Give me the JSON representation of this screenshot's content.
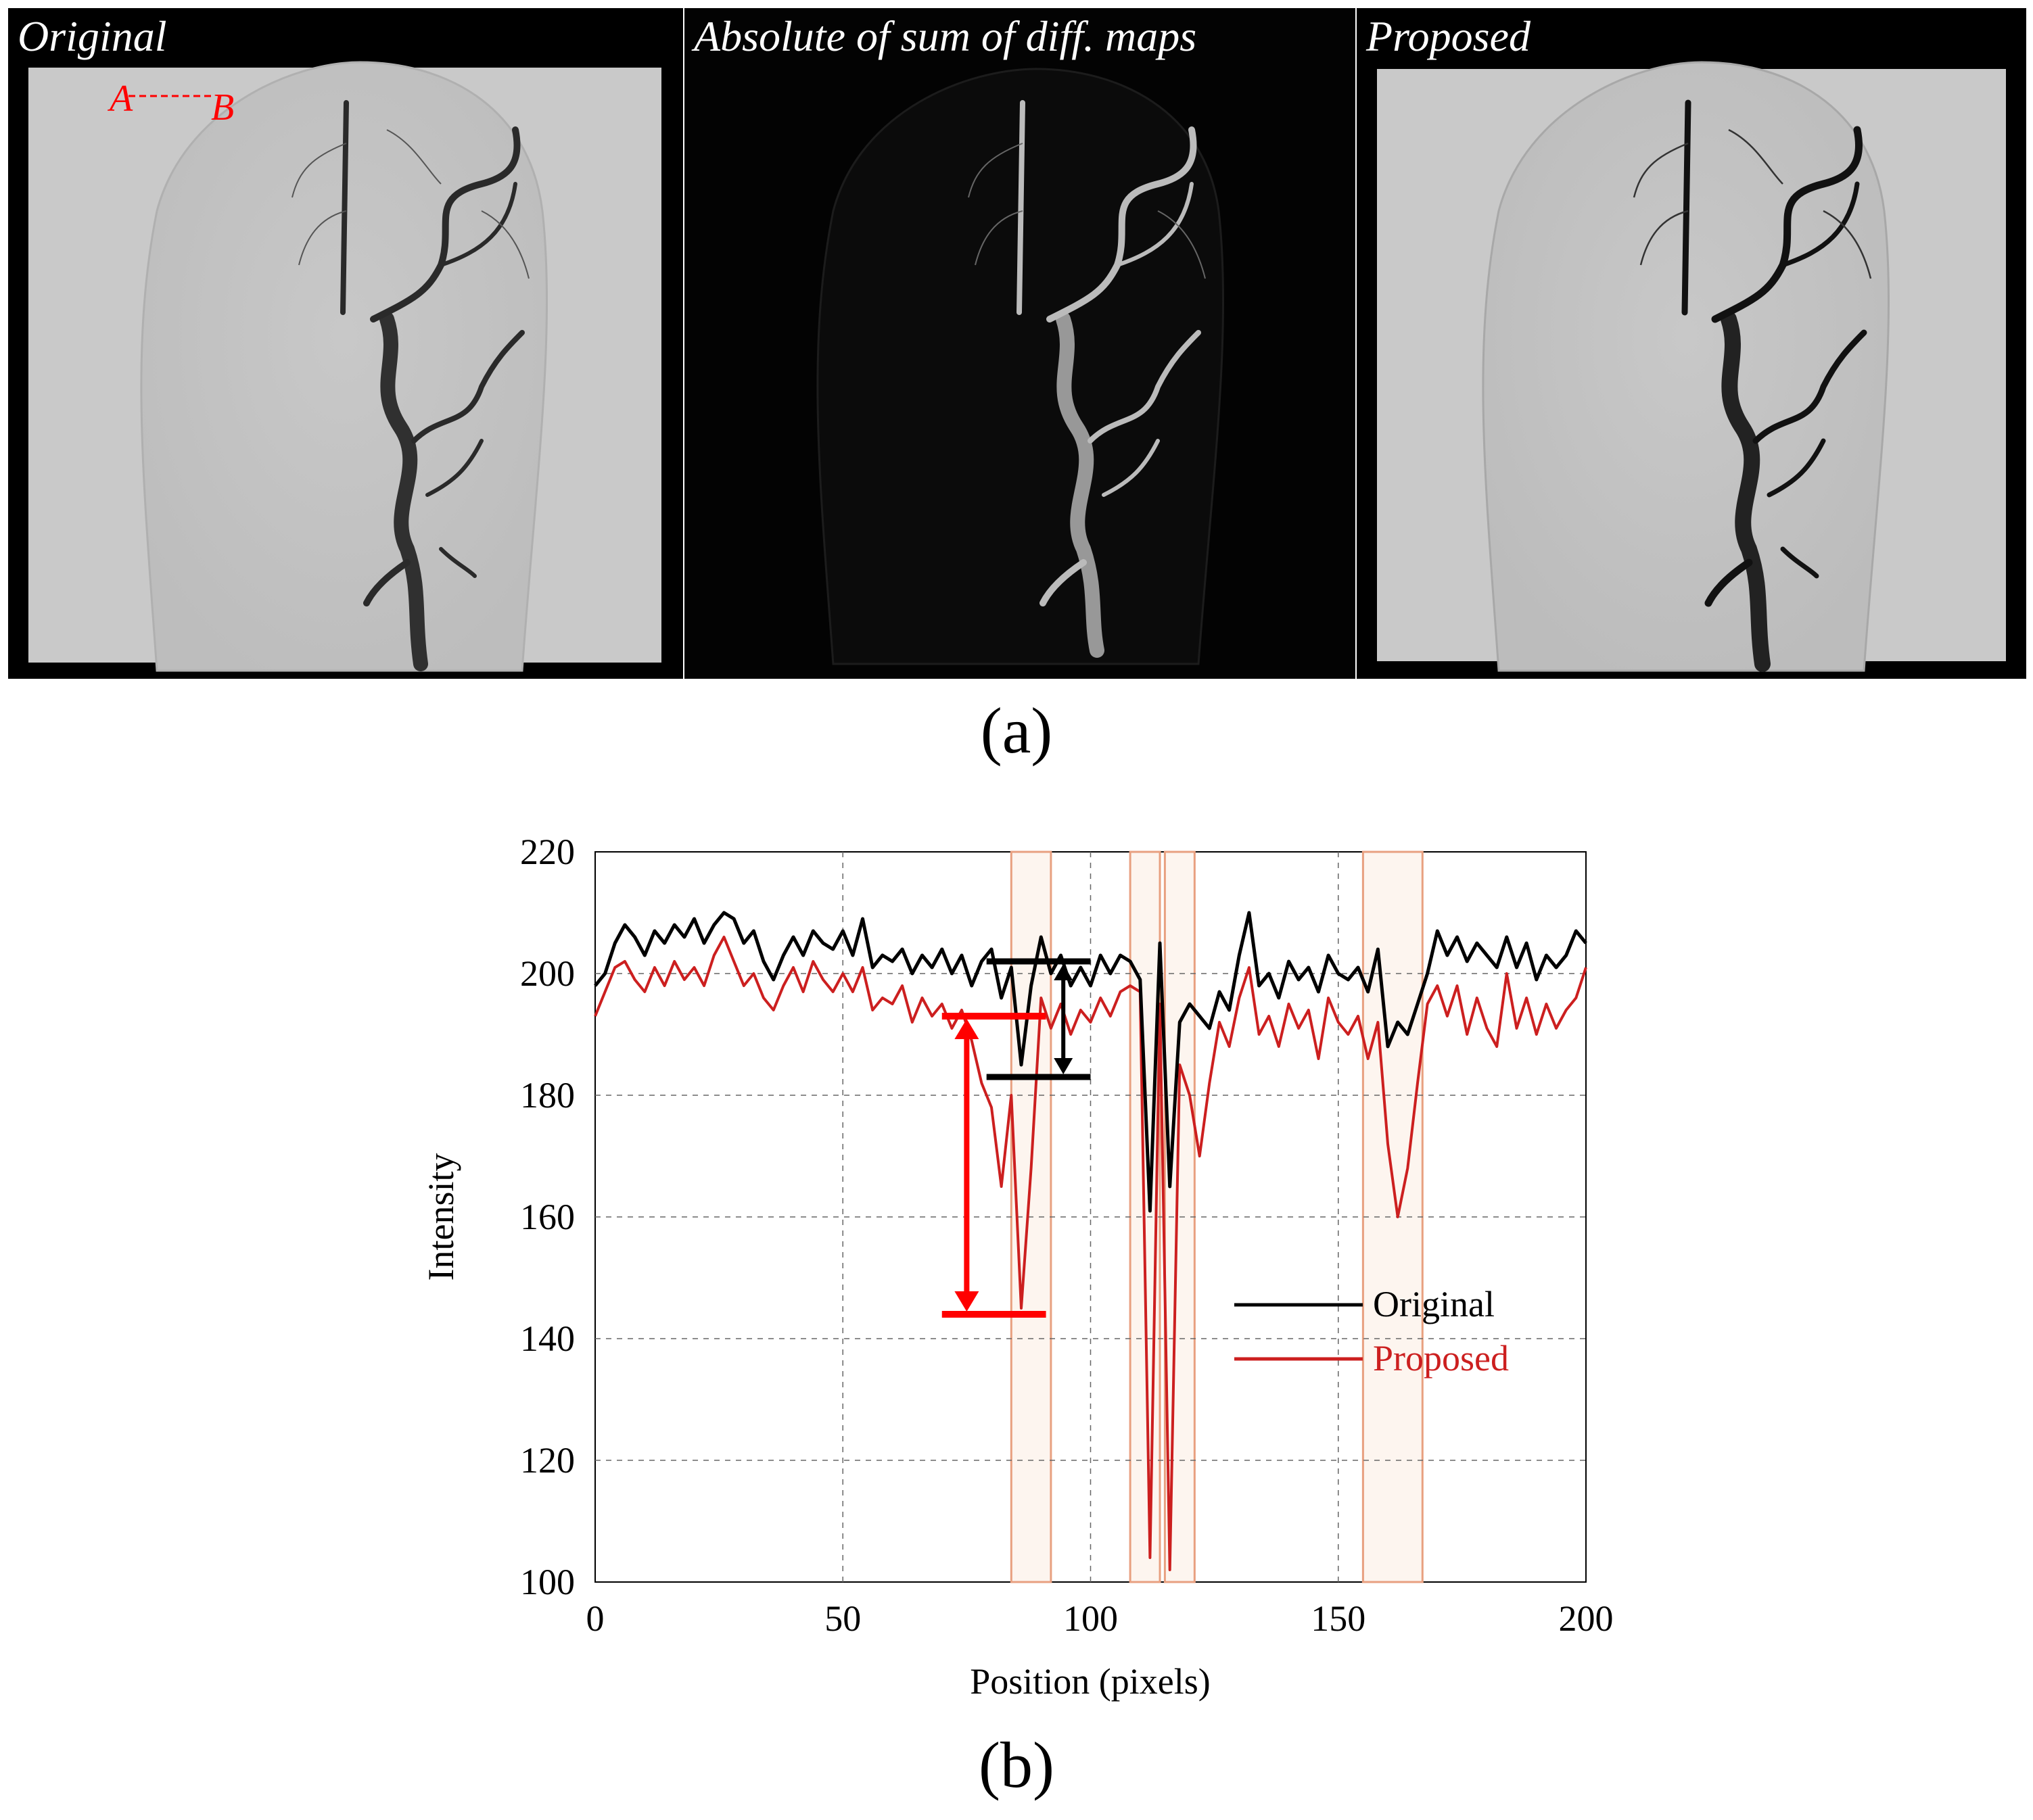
{
  "figure": {
    "panels": [
      {
        "title": "Original",
        "marker_a": "A",
        "marker_b": "B"
      },
      {
        "title": "Absolute of sum of diff. maps"
      },
      {
        "title": "Proposed"
      }
    ],
    "sublabel_a": "(a)",
    "sublabel_b": "(b)"
  },
  "colors": {
    "original": "#000000",
    "proposed": "#cc1f1f",
    "annotation_red": "#ff0000",
    "highlight_box": "#e8a080"
  },
  "chart_data": {
    "type": "line",
    "xlabel": "Position (pixels)",
    "ylabel": "Intensity",
    "xlim": [
      0,
      200
    ],
    "ylim": [
      100,
      220
    ],
    "xticks": [
      0,
      50,
      100,
      150,
      200
    ],
    "yticks": [
      100,
      120,
      140,
      160,
      180,
      200,
      220
    ],
    "grid": true,
    "legend_position": "center-right",
    "series": [
      {
        "name": "Original",
        "color": "#000000",
        "x": [
          0,
          2,
          4,
          6,
          8,
          10,
          12,
          14,
          16,
          18,
          20,
          22,
          24,
          26,
          28,
          30,
          32,
          34,
          36,
          38,
          40,
          42,
          44,
          46,
          48,
          50,
          52,
          54,
          56,
          58,
          60,
          62,
          64,
          66,
          68,
          70,
          72,
          74,
          76,
          78,
          80,
          82,
          84,
          86,
          88,
          90,
          92,
          94,
          96,
          98,
          100,
          102,
          104,
          106,
          108,
          110,
          112,
          114,
          116,
          118,
          120,
          122,
          124,
          126,
          128,
          130,
          132,
          134,
          136,
          138,
          140,
          142,
          144,
          146,
          148,
          150,
          152,
          154,
          156,
          158,
          160,
          162,
          164,
          166,
          168,
          170,
          172,
          174,
          176,
          178,
          180,
          182,
          184,
          186,
          188,
          190,
          192,
          194,
          196,
          198,
          200
        ],
        "values": [
          198,
          200,
          205,
          208,
          206,
          203,
          207,
          205,
          208,
          206,
          209,
          205,
          208,
          210,
          209,
          205,
          207,
          202,
          199,
          203,
          206,
          203,
          207,
          205,
          204,
          207,
          203,
          209,
          201,
          203,
          202,
          204,
          200,
          203,
          201,
          204,
          200,
          203,
          198,
          202,
          204,
          196,
          201,
          185,
          198,
          206,
          200,
          203,
          198,
          201,
          198,
          203,
          200,
          203,
          202,
          199,
          161,
          205,
          165,
          192,
          195,
          193,
          191,
          197,
          194,
          203,
          210,
          198,
          200,
          196,
          202,
          199,
          201,
          197,
          203,
          200,
          199,
          201,
          197,
          204,
          188,
          192,
          190,
          195,
          200,
          207,
          203,
          206,
          202,
          205,
          203,
          201,
          206,
          201,
          205,
          199,
          203,
          201,
          203,
          207,
          205
        ]
      },
      {
        "name": "Proposed",
        "color": "#cc1f1f",
        "x": [
          0,
          2,
          4,
          6,
          8,
          10,
          12,
          14,
          16,
          18,
          20,
          22,
          24,
          26,
          28,
          30,
          32,
          34,
          36,
          38,
          40,
          42,
          44,
          46,
          48,
          50,
          52,
          54,
          56,
          58,
          60,
          62,
          64,
          66,
          68,
          70,
          72,
          74,
          76,
          78,
          80,
          82,
          84,
          86,
          88,
          90,
          92,
          94,
          96,
          98,
          100,
          102,
          104,
          106,
          108,
          110,
          112,
          114,
          116,
          118,
          120,
          122,
          124,
          126,
          128,
          130,
          132,
          134,
          136,
          138,
          140,
          142,
          144,
          146,
          148,
          150,
          152,
          154,
          156,
          158,
          160,
          162,
          164,
          166,
          168,
          170,
          172,
          174,
          176,
          178,
          180,
          182,
          184,
          186,
          188,
          190,
          192,
          194,
          196,
          198,
          200
        ],
        "values": [
          193,
          197,
          201,
          202,
          199,
          197,
          201,
          198,
          202,
          199,
          201,
          198,
          203,
          206,
          202,
          198,
          200,
          196,
          194,
          198,
          201,
          197,
          202,
          199,
          197,
          200,
          197,
          201,
          194,
          196,
          195,
          198,
          192,
          196,
          193,
          195,
          191,
          194,
          189,
          182,
          178,
          165,
          180,
          145,
          168,
          196,
          191,
          195,
          190,
          194,
          192,
          196,
          193,
          197,
          198,
          197,
          104,
          195,
          102,
          185,
          180,
          170,
          182,
          192,
          188,
          196,
          201,
          190,
          193,
          188,
          195,
          191,
          194,
          186,
          196,
          192,
          190,
          193,
          186,
          192,
          172,
          160,
          168,
          182,
          195,
          198,
          193,
          198,
          190,
          196,
          191,
          188,
          200,
          191,
          196,
          190,
          195,
          191,
          194,
          196,
          201
        ]
      }
    ],
    "highlight_ranges_x": [
      [
        84,
        92
      ],
      [
        108,
        114
      ],
      [
        115,
        121
      ],
      [
        155,
        167
      ]
    ],
    "annotations": {
      "original_gap": {
        "x_start": 79,
        "x_end": 100,
        "y_high": 202,
        "y_low": 183
      },
      "proposed_gap": {
        "x_start": 70,
        "x_end": 91,
        "y_high": 193,
        "y_low": 144
      }
    }
  }
}
